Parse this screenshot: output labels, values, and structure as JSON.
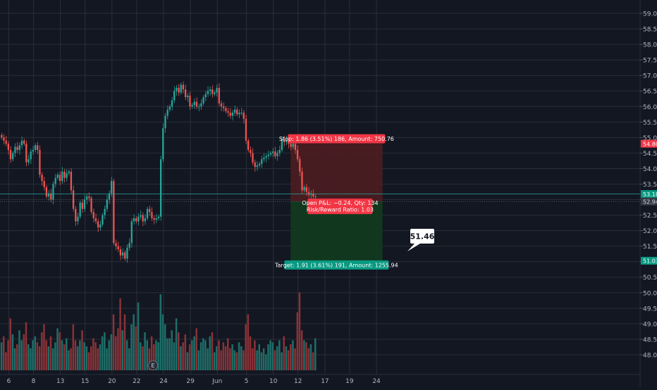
{
  "chart_data": {
    "type": "candlestick",
    "price_axis": {
      "min": 47.5,
      "max": 59.25,
      "ticks": [
        "59.00",
        "58.50",
        "58.00",
        "57.50",
        "57.00",
        "56.50",
        "56.00",
        "55.50",
        "55.00",
        "54.50",
        "54.00",
        "53.50",
        "53.00",
        "52.50",
        "52.00",
        "51.50",
        "51.00",
        "50.50",
        "50.00",
        "49.50",
        "49.00",
        "48.50",
        "48.00"
      ]
    },
    "time_axis": {
      "labels": [
        {
          "text": "6",
          "bar": 3
        },
        {
          "text": "8",
          "bar": 14
        },
        {
          "text": "13",
          "bar": 26
        },
        {
          "text": "15",
          "bar": 37
        },
        {
          "text": "20",
          "bar": 49
        },
        {
          "text": "22",
          "bar": 60
        },
        {
          "text": "24",
          "bar": 72
        },
        {
          "text": "29",
          "bar": 84
        },
        {
          "text": "Jun",
          "bar": 96
        },
        {
          "text": "5",
          "bar": 109
        },
        {
          "text": "10",
          "bar": 121
        },
        {
          "text": "12",
          "bar": 132
        },
        {
          "text": "17",
          "bar": 144
        },
        {
          "text": "19",
          "bar": 155
        },
        {
          "text": "24",
          "bar": 167
        }
      ]
    },
    "closes": [
      55.0,
      54.9,
      54.8,
      54.6,
      54.3,
      54.5,
      54.7,
      54.6,
      54.75,
      54.9,
      54.8,
      54.2,
      54.3,
      54.55,
      54.6,
      54.75,
      54.6,
      53.8,
      53.6,
      53.4,
      53.1,
      53.2,
      53.0,
      53.5,
      53.7,
      53.8,
      53.6,
      53.9,
      53.7,
      53.85,
      53.9,
      53.3,
      52.7,
      52.3,
      52.45,
      52.9,
      52.7,
      53.0,
      53.1,
      53.05,
      52.6,
      52.4,
      52.3,
      52.1,
      52.2,
      52.5,
      52.7,
      53.0,
      53.2,
      53.6,
      51.6,
      51.5,
      51.4,
      51.2,
      51.3,
      51.1,
      51.45,
      51.6,
      52.3,
      52.4,
      52.3,
      52.45,
      52.5,
      52.3,
      52.4,
      52.7,
      52.6,
      52.4,
      52.35,
      52.4,
      52.45,
      54.3,
      55.3,
      55.7,
      55.9,
      56.0,
      56.2,
      56.5,
      56.6,
      56.45,
      56.7,
      56.55,
      56.3,
      56.35,
      56.0,
      56.05,
      56.15,
      56.0,
      56.0,
      56.1,
      56.3,
      56.4,
      56.5,
      56.55,
      56.4,
      56.45,
      56.6,
      56.1,
      56.0,
      55.95,
      55.85,
      55.8,
      55.7,
      55.8,
      55.9,
      55.75,
      55.8,
      55.8,
      55.6,
      54.9,
      54.6,
      54.5,
      54.2,
      54.05,
      54.1,
      54.15,
      54.3,
      54.35,
      54.4,
      54.45,
      54.5,
      54.55,
      54.4,
      54.5,
      54.6,
      54.95,
      54.85,
      54.9,
      54.8,
      54.7,
      54.8,
      54.6,
      54.3,
      53.9,
      53.3,
      53.4,
      53.25,
      53.15,
      53.2,
      53.1,
      53.1
    ],
    "volume": [
      28,
      34,
      18,
      30,
      52,
      36,
      22,
      26,
      40,
      30,
      36,
      48,
      26,
      22,
      30,
      34,
      28,
      24,
      38,
      46,
      30,
      24,
      34,
      22,
      28,
      42,
      38,
      30,
      26,
      32,
      20,
      22,
      46,
      30,
      24,
      30,
      40,
      28,
      24,
      18,
      24,
      32,
      28,
      22,
      26,
      34,
      38,
      22,
      30,
      36,
      56,
      34,
      42,
      72,
      40,
      56,
      30,
      22,
      46,
      56,
      44,
      68,
      28,
      24,
      38,
      30,
      22,
      34,
      26,
      30,
      28,
      76,
      56,
      46,
      32,
      32,
      40,
      28,
      52,
      38,
      24,
      28,
      36,
      18,
      26,
      30,
      34,
      42,
      20,
      28,
      32,
      30,
      22,
      34,
      38,
      18,
      24,
      30,
      20,
      28,
      24,
      32,
      22,
      26,
      20,
      18,
      28,
      24,
      20,
      46,
      56,
      34,
      22,
      30,
      20,
      26,
      18,
      22,
      16,
      26,
      30,
      28,
      20,
      24,
      30,
      18,
      34,
      24,
      20,
      26,
      30,
      22,
      58,
      78,
      40,
      30,
      28,
      22,
      26,
      18,
      32
    ],
    "position": {
      "stop_price": 54.8,
      "entry_price": 52.94,
      "target_price": 51.03,
      "current_price": 53.18,
      "start_bar": 129,
      "end_bar": 170,
      "stop_label": "Stop: 1.86 (3.51%) 186, Amount: 750.76",
      "pnl_label": "Open P&L: −0.24, Qty: 134",
      "rr_label": "Risk/Reward Ratio: 1.03",
      "target_label": "Target: 1.91 (3.61%) 191, Amount: 1255.94"
    },
    "price_tags": {
      "stop": "54.80",
      "current": "53.18",
      "entry": "52.94",
      "target": "51.03"
    },
    "crosshair_label": "51.46",
    "earnings_marker": "E",
    "colors": {
      "background": "#131722",
      "grid": "#2a2e39",
      "up": "#26a69a",
      "down": "#ef5350",
      "volume_up": "#1f6e68",
      "volume_down": "#8a3237",
      "risk_zone": "#4a1c22",
      "reward_zone": "#113a1f",
      "stop_tag": "#f23645",
      "target_tag": "#089981",
      "entry_tag": "#363a45",
      "axis_text": "#b2b5be"
    }
  }
}
